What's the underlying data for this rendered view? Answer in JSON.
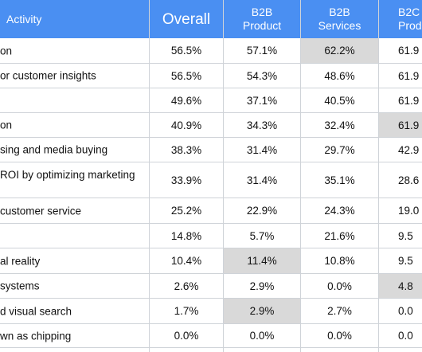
{
  "columns": {
    "activity": "Activity",
    "overall": "Overall",
    "b2b_product": [
      "B2B",
      "Product"
    ],
    "b2b_services": [
      "B2B",
      "Services"
    ],
    "b2c_product": [
      "B2C",
      "Produ"
    ]
  },
  "rows": [
    {
      "label": "on",
      "overall": "56.5%",
      "b2b_product": "57.1%",
      "b2b_services": "62.2%",
      "b2c_product": "61.9",
      "hl": "b2b_services"
    },
    {
      "label": "or customer insights",
      "overall": "56.5%",
      "b2b_product": "54.3%",
      "b2b_services": "48.6%",
      "b2c_product": "61.9",
      "hl": ""
    },
    {
      "label": "",
      "overall": "49.6%",
      "b2b_product": "37.1%",
      "b2b_services": "40.5%",
      "b2c_product": "61.9",
      "hl": ""
    },
    {
      "label": "on",
      "overall": "40.9%",
      "b2b_product": "34.3%",
      "b2b_services": "32.4%",
      "b2c_product": "61.9",
      "hl": "b2c_product"
    },
    {
      "label": "sing and media buying",
      "overall": "38.3%",
      "b2b_product": "31.4%",
      "b2b_services": "29.7%",
      "b2c_product": "42.9",
      "hl": ""
    },
    {
      "label": "ROI by optimizing marketing",
      "overall": "33.9%",
      "b2b_product": "31.4%",
      "b2b_services": "35.1%",
      "b2c_product": "28.6",
      "hl": "",
      "tall": true
    },
    {
      "label": "customer service",
      "overall": "25.2%",
      "b2b_product": "22.9%",
      "b2b_services": "24.3%",
      "b2c_product": "19.0",
      "hl": ""
    },
    {
      "label": "",
      "overall": "14.8%",
      "b2b_product": "5.7%",
      "b2b_services": "21.6%",
      "b2c_product": "9.5",
      "hl": ""
    },
    {
      "label": "al reality",
      "overall": "10.4%",
      "b2b_product": "11.4%",
      "b2b_services": "10.8%",
      "b2c_product": "9.5",
      "hl": "b2b_product"
    },
    {
      "label": "systems",
      "overall": "2.6%",
      "b2b_product": "2.9%",
      "b2b_services": "0.0%",
      "b2c_product": "4.8",
      "hl": "b2c_product"
    },
    {
      "label": "d visual search",
      "overall": "1.7%",
      "b2b_product": "2.9%",
      "b2b_services": "2.7%",
      "b2c_product": "0.0",
      "hl": "b2b_product"
    },
    {
      "label": "wn as chipping",
      "overall": "0.0%",
      "b2b_product": "0.0%",
      "b2b_services": "0.0%",
      "b2c_product": "0.0",
      "hl": ""
    }
  ],
  "colors": {
    "header_bg": "#4a8ff2",
    "highlight": "#d9d9d9",
    "grid": "#cfd3d8"
  }
}
